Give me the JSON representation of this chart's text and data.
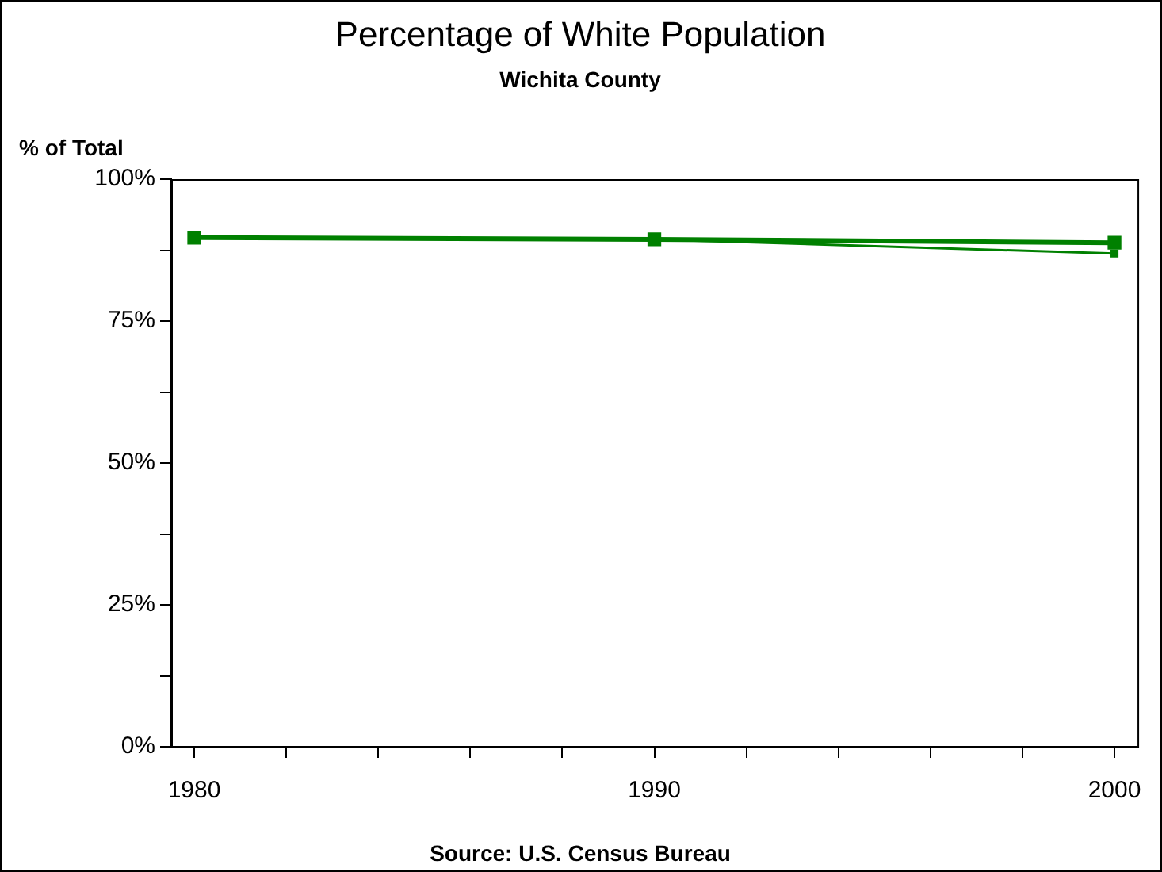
{
  "chart_data": {
    "type": "line",
    "title": "Percentage of White Population",
    "subtitle": "Wichita County",
    "ylabel": "% of Total",
    "annotations": [
      "Source: U.S. Census Bureau"
    ],
    "series": [
      {
        "color": "#008000",
        "x": [
          1980,
          1990,
          2000
        ],
        "values": [
          89.7,
          89.4,
          88.8
        ]
      },
      {
        "color": "#008000",
        "x": [
          1990,
          2000
        ],
        "values": [
          89.4,
          86.9
        ]
      }
    ],
    "xlim": [
      1979.5,
      2000.5
    ],
    "xticks": [
      1980,
      {
        "value": 1982,
        "label": null
      },
      {
        "value": 1984,
        "label": null
      },
      {
        "value": 1986,
        "label": null
      },
      {
        "value": 1988,
        "label": null
      },
      1990,
      {
        "value": 1992,
        "label": null
      },
      {
        "value": 1994,
        "label": null
      },
      {
        "value": 1996,
        "label": null
      },
      {
        "value": 1998,
        "label": null
      },
      2000
    ],
    "ylim": [
      0,
      100
    ],
    "yticks": [
      {
        "value": 0,
        "label": "0%"
      },
      {
        "value": 12.5,
        "label": null
      },
      {
        "value": 25,
        "label": "25%"
      },
      {
        "value": 37.5,
        "label": null
      },
      {
        "value": 50,
        "label": "50%"
      },
      {
        "value": 62.5,
        "label": null
      },
      {
        "value": 75,
        "label": "75%"
      },
      {
        "value": 87.5,
        "label": null
      },
      {
        "value": 100,
        "label": "100%"
      }
    ],
    "grid": false,
    "legend": false,
    "marker": "square",
    "line_style": "solid"
  }
}
